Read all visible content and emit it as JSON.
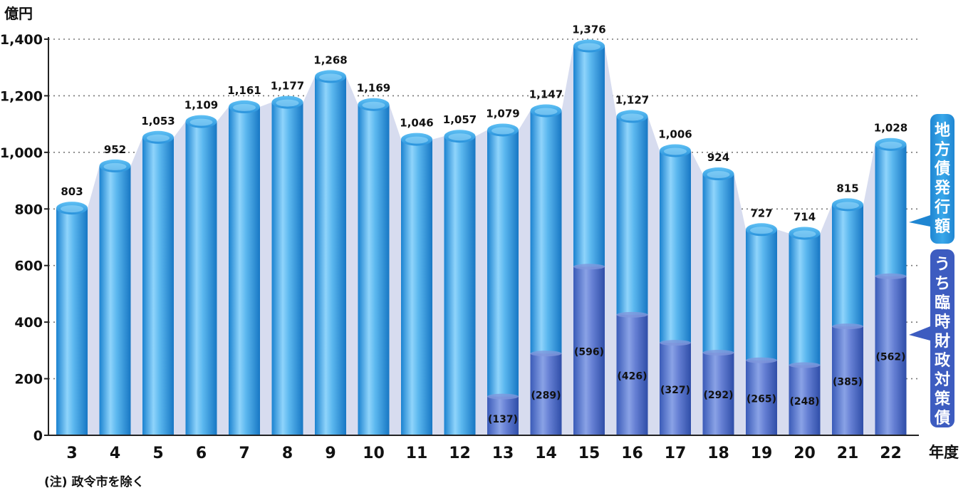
{
  "chart_data": {
    "type": "bar",
    "y_unit_label": "億円",
    "x_unit_label": "年度",
    "categories": [
      "3",
      "4",
      "5",
      "6",
      "7",
      "8",
      "9",
      "10",
      "11",
      "12",
      "13",
      "14",
      "15",
      "16",
      "17",
      "18",
      "19",
      "20",
      "21",
      "22"
    ],
    "ylim": [
      0,
      1400
    ],
    "yticks": [
      0,
      200,
      400,
      600,
      800,
      1000,
      1200,
      1400
    ],
    "ytick_labels": [
      "0",
      "200",
      "400",
      "600",
      "800",
      "1,000",
      "1,200",
      "1,400"
    ],
    "grid": true,
    "series": [
      {
        "name": "地方債発行額",
        "values": [
          803,
          952,
          1053,
          1109,
          1161,
          1177,
          1268,
          1169,
          1046,
          1057,
          1079,
          1147,
          1376,
          1127,
          1006,
          924,
          727,
          714,
          815,
          1028
        ],
        "labels": [
          "803",
          "952",
          "1,053",
          "1,109",
          "1,161",
          "1,177",
          "1,268",
          "1,169",
          "1,046",
          "1,057",
          "1,079",
          "1,147",
          "1,376",
          "1,127",
          "1,006",
          "924",
          "727",
          "714",
          "815",
          "1,028"
        ],
        "color": "#3aa0e0"
      },
      {
        "name": "うち臨時財政対策債",
        "values": [
          null,
          null,
          null,
          null,
          null,
          null,
          null,
          null,
          null,
          null,
          137,
          289,
          596,
          426,
          327,
          292,
          265,
          248,
          385,
          562
        ],
        "labels": [
          "",
          "",
          "",
          "",
          "",
          "",
          "",
          "",
          "",
          "",
          "(137)",
          "(289)",
          "(596)",
          "(426)",
          "(327)",
          "(292)",
          "(265)",
          "(248)",
          "(385)",
          "(562)"
        ],
        "color": "#4c6fc8"
      }
    ],
    "legend_placement": "right",
    "note": "(注)  政令市を除く"
  }
}
